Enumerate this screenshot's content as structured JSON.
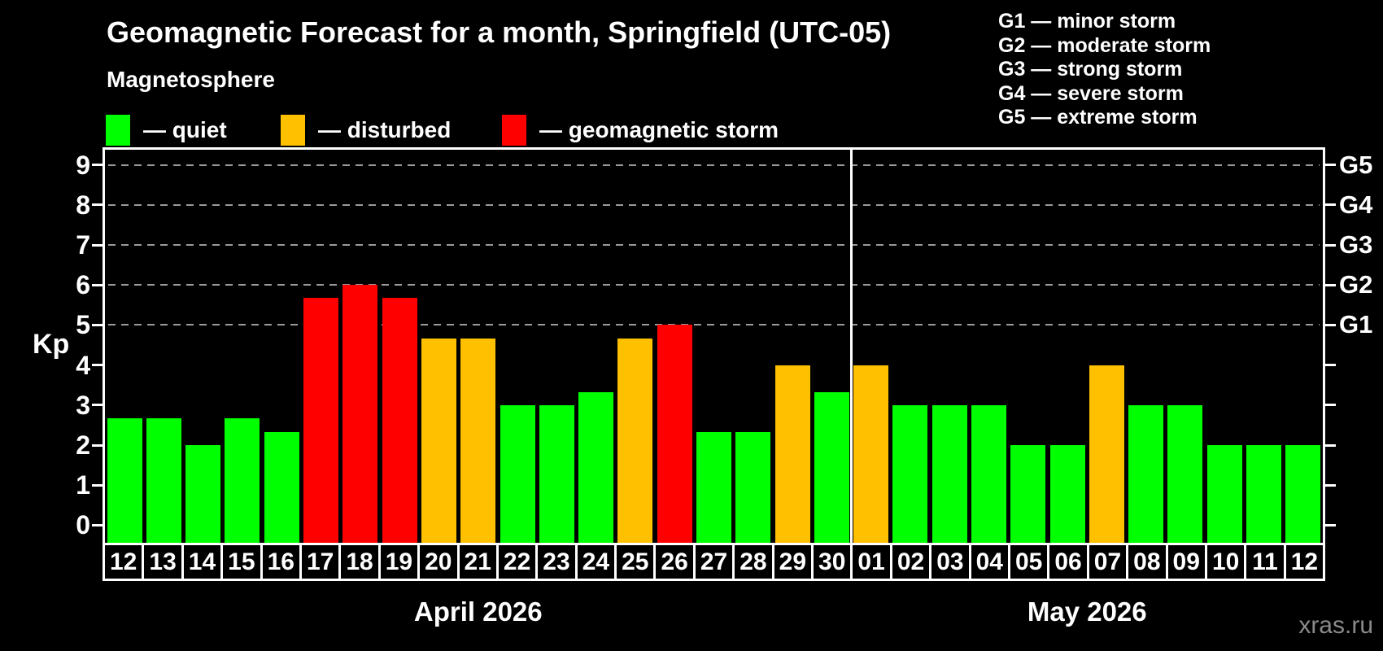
{
  "header": {
    "title": "Geomagnetic Forecast for a month, Springfield (UTC-05)",
    "subtitle": "Magnetosphere"
  },
  "legend": {
    "items": [
      {
        "key": "quiet",
        "label": "— quiet",
        "color": "#00ff00"
      },
      {
        "key": "disturbed",
        "label": "— disturbed",
        "color": "#ffc000"
      },
      {
        "key": "storm",
        "label": "— geomagnetic storm",
        "color": "#ff0000"
      }
    ]
  },
  "storm_scale_legend": {
    "lines": [
      "G1 — minor storm",
      "G2 — moderate storm",
      "G3 — strong storm",
      "G4 — severe storm",
      "G5 — extreme storm"
    ]
  },
  "chart_data": {
    "type": "bar",
    "title": "Geomagnetic Forecast for a month, Springfield (UTC-05)",
    "ylabel": "Kp",
    "ylim": [
      0,
      9
    ],
    "y_ticks": [
      0,
      1,
      2,
      3,
      4,
      5,
      6,
      7,
      8,
      9
    ],
    "gridlines_at": [
      5,
      6,
      7,
      8,
      9
    ],
    "legend_position": "top-left",
    "right_axis_labels": [
      {
        "kp": 5,
        "label": "G1"
      },
      {
        "kp": 6,
        "label": "G2"
      },
      {
        "kp": 7,
        "label": "G3"
      },
      {
        "kp": 8,
        "label": "G4"
      },
      {
        "kp": 9,
        "label": "G5"
      }
    ],
    "months": [
      {
        "label": "April 2026",
        "bars": [
          {
            "day": "12",
            "kp": 2.67,
            "status": "quiet"
          },
          {
            "day": "13",
            "kp": 2.67,
            "status": "quiet"
          },
          {
            "day": "14",
            "kp": 2.0,
            "status": "quiet"
          },
          {
            "day": "15",
            "kp": 2.67,
            "status": "quiet"
          },
          {
            "day": "16",
            "kp": 2.33,
            "status": "quiet"
          },
          {
            "day": "17",
            "kp": 5.67,
            "status": "storm"
          },
          {
            "day": "18",
            "kp": 6.0,
            "status": "storm"
          },
          {
            "day": "19",
            "kp": 5.67,
            "status": "storm"
          },
          {
            "day": "20",
            "kp": 4.67,
            "status": "disturbed"
          },
          {
            "day": "21",
            "kp": 4.67,
            "status": "disturbed"
          },
          {
            "day": "22",
            "kp": 3.0,
            "status": "quiet"
          },
          {
            "day": "23",
            "kp": 3.0,
            "status": "quiet"
          },
          {
            "day": "24",
            "kp": 3.33,
            "status": "quiet"
          },
          {
            "day": "25",
            "kp": 4.67,
            "status": "disturbed"
          },
          {
            "day": "26",
            "kp": 5.0,
            "status": "storm"
          },
          {
            "day": "27",
            "kp": 2.33,
            "status": "quiet"
          },
          {
            "day": "28",
            "kp": 2.33,
            "status": "quiet"
          },
          {
            "day": "29",
            "kp": 4.0,
            "status": "disturbed"
          },
          {
            "day": "30",
            "kp": 3.33,
            "status": "quiet"
          }
        ]
      },
      {
        "label": "May 2026",
        "bars": [
          {
            "day": "01",
            "kp": 4.0,
            "status": "disturbed"
          },
          {
            "day": "02",
            "kp": 3.0,
            "status": "quiet"
          },
          {
            "day": "03",
            "kp": 3.0,
            "status": "quiet"
          },
          {
            "day": "04",
            "kp": 3.0,
            "status": "quiet"
          },
          {
            "day": "05",
            "kp": 2.0,
            "status": "quiet"
          },
          {
            "day": "06",
            "kp": 2.0,
            "status": "quiet"
          },
          {
            "day": "07",
            "kp": 4.0,
            "status": "disturbed"
          },
          {
            "day": "08",
            "kp": 3.0,
            "status": "quiet"
          },
          {
            "day": "09",
            "kp": 3.0,
            "status": "quiet"
          },
          {
            "day": "10",
            "kp": 2.0,
            "status": "quiet"
          },
          {
            "day": "11",
            "kp": 2.0,
            "status": "quiet"
          },
          {
            "day": "12",
            "kp": 2.0,
            "status": "quiet"
          }
        ]
      }
    ]
  },
  "colors": {
    "background": "#000000",
    "text": "#ffffff",
    "axis": "#ffffff",
    "grid": "#9a9a9a",
    "watermark": "#8a8a8a",
    "quiet": "#00ff00",
    "disturbed": "#ffc000",
    "storm": "#ff0000"
  },
  "watermark": "xras.ru"
}
